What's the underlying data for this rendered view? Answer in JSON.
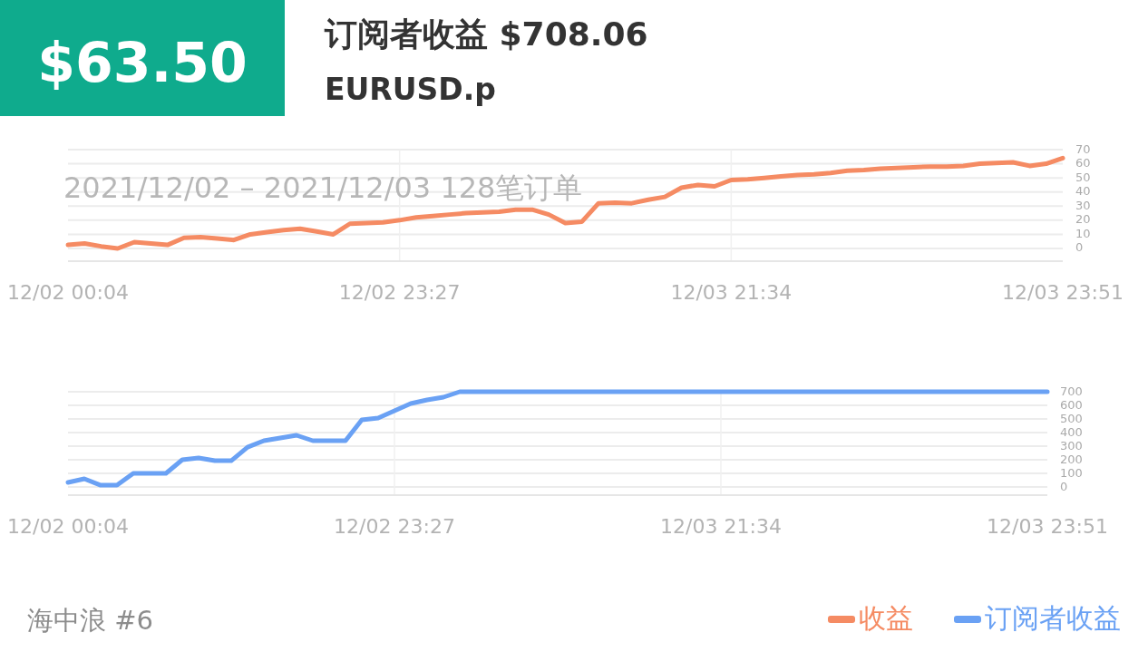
{
  "chart_data": [
    {
      "type": "line",
      "title": "订阅者收益 $708.06",
      "subtitle": "EURUSD.p",
      "annotations": [
        "$63.50",
        "2021/12/02 – 2021/12/03  128笔订单",
        "海中浪 #6"
      ],
      "categories": [
        "12/02 00:04",
        null,
        null,
        null,
        null,
        null,
        null,
        null,
        null,
        null,
        null,
        null,
        null,
        null,
        null,
        null,
        null,
        null,
        null,
        null,
        "12/02 23:27",
        null,
        null,
        null,
        null,
        null,
        null,
        null,
        null,
        null,
        null,
        null,
        null,
        null,
        null,
        null,
        null,
        null,
        null,
        null,
        "12/03 21:34",
        null,
        null,
        null,
        null,
        null,
        null,
        null,
        null,
        null,
        null,
        null,
        null,
        null,
        null,
        null,
        null,
        null,
        null,
        null,
        "12/03 23:51"
      ],
      "series": [
        {
          "name": "收益",
          "color": "#f58b63",
          "values": [
            2.5,
            3.5,
            1.5,
            0,
            4.5,
            3.5,
            2.5,
            7.5,
            8,
            7,
            6,
            10,
            11.5,
            13,
            14,
            12,
            10,
            17.5,
            18,
            18.5,
            20,
            22,
            23,
            24,
            25,
            25.5,
            26,
            27.5,
            27.5,
            24,
            18,
            19,
            32,
            32.5,
            32,
            34.5,
            36.5,
            43,
            45,
            44,
            48.5,
            49,
            50,
            51,
            52,
            52.5,
            53.5,
            55,
            55.5,
            56.5,
            57,
            57.5,
            58,
            58,
            58.5,
            60,
            60.5,
            61,
            58.5,
            60,
            64
          ]
        }
      ],
      "ylim": [
        -9,
        70
      ],
      "yticks": [
        0,
        10,
        20,
        30,
        40,
        50,
        60,
        70
      ],
      "grid": true,
      "legend": "bottom right"
    },
    {
      "type": "line",
      "categories": [
        "12/02 00:04",
        null,
        null,
        null,
        null,
        null,
        null,
        null,
        null,
        null,
        null,
        null,
        null,
        null,
        null,
        null,
        null,
        null,
        null,
        null,
        "12/02 23:27",
        null,
        null,
        null,
        null,
        null,
        null,
        null,
        null,
        null,
        null,
        null,
        null,
        null,
        null,
        null,
        null,
        null,
        null,
        null,
        "12/03 21:34",
        null,
        null,
        null,
        null,
        null,
        null,
        null,
        null,
        null,
        null,
        null,
        null,
        null,
        null,
        null,
        null,
        null,
        null,
        null,
        "12/03 23:51"
      ],
      "series": [
        {
          "name": "订阅者收益",
          "color": "#6aa1f4",
          "values": [
            33,
            60,
            13,
            13,
            100,
            100,
            100,
            200,
            213,
            193,
            193,
            293,
            340,
            360,
            380,
            340,
            340,
            340,
            493,
            507,
            560,
            613,
            640,
            660,
            700,
            700,
            700,
            700,
            700,
            700,
            700,
            700,
            700,
            700,
            700,
            700,
            700,
            700,
            700,
            700,
            700,
            700,
            700,
            700,
            700,
            700,
            700,
            700,
            700,
            700,
            700,
            700,
            700,
            700,
            700,
            700,
            700,
            700,
            700,
            700,
            700
          ]
        }
      ],
      "ylim": [
        -60,
        700
      ],
      "yticks": [
        0,
        100,
        200,
        300,
        400,
        500,
        600,
        700
      ],
      "grid": true,
      "legend": "bottom right"
    }
  ]
}
